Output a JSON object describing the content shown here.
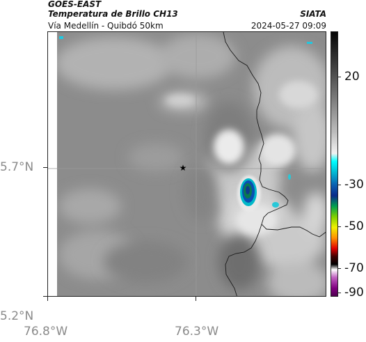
{
  "header": {
    "satellite": "GOES-EAST",
    "product": "Temperatura de Brillo CH13",
    "location": "Vía Medellín - Quibdó 50km",
    "organization": "SIATA",
    "timestamp": "2024-05-27 09:09"
  },
  "axes": {
    "lat_labels": [
      "5.7°N",
      "5.2°N"
    ],
    "lon_labels": [
      "76.8°W",
      "76.3°W"
    ]
  },
  "colorbar": {
    "labels": [
      "20",
      "-30",
      "-50",
      "-70",
      "-90"
    ]
  },
  "colors": {
    "frame": "#222222",
    "axis_label": "#8a8a8a",
    "background": "#ffffff"
  },
  "icons": {
    "location_marker": "star-icon"
  }
}
